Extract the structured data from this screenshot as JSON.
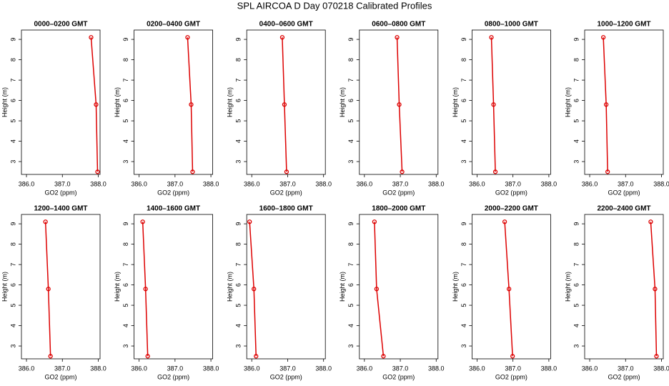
{
  "title": "SPL AIRCOA D  Day 070218  Calibrated Profiles",
  "chart_data": [
    {
      "type": "line",
      "title": "0000–0200 GMT",
      "xlabel": "GO2 (ppm)",
      "ylabel": "Height (m)",
      "x": [
        387.8,
        387.94,
        387.98
      ],
      "values": [
        9.1,
        5.8,
        2.5
      ],
      "color": "#dd0000",
      "xlim": [
        385.86,
        388.05
      ],
      "ylim": [
        2.37,
        9.46
      ],
      "xticks": [
        {
          "value": 386,
          "label": "386.0"
        },
        {
          "value": 387,
          "label": "387.0"
        },
        {
          "value": 388,
          "label": "388.0"
        }
      ],
      "yticks": [
        3,
        4,
        5,
        6,
        7,
        8,
        9
      ]
    },
    {
      "type": "line",
      "title": "0200–0400 GMT",
      "xlabel": "GO2 (ppm)",
      "ylabel": "Height (m)",
      "x": [
        387.35,
        387.45,
        387.49
      ],
      "values": [
        9.1,
        5.8,
        2.5
      ],
      "color": "#dd0000",
      "xlim": [
        385.86,
        388.05
      ],
      "ylim": [
        2.37,
        9.46
      ],
      "xticks": [
        {
          "value": 386,
          "label": "386.0"
        },
        {
          "value": 387,
          "label": "387.0"
        },
        {
          "value": 388,
          "label": "388.0"
        }
      ],
      "yticks": [
        3,
        4,
        5,
        6,
        7,
        8,
        9
      ]
    },
    {
      "type": "line",
      "title": "0400–0600 GMT",
      "xlabel": "GO2 (ppm)",
      "ylabel": "Height (m)",
      "x": [
        386.85,
        386.91,
        386.97
      ],
      "values": [
        9.1,
        5.8,
        2.5
      ],
      "color": "#dd0000",
      "xlim": [
        385.86,
        388.05
      ],
      "ylim": [
        2.37,
        9.46
      ],
      "xticks": [
        {
          "value": 386,
          "label": "386.0"
        },
        {
          "value": 387,
          "label": "387.0"
        },
        {
          "value": 388,
          "label": "388.0"
        }
      ],
      "yticks": [
        3,
        4,
        5,
        6,
        7,
        8,
        9
      ]
    },
    {
      "type": "line",
      "title": "0600–0800 GMT",
      "xlabel": "GO2 (ppm)",
      "ylabel": "Height (m)",
      "x": [
        386.91,
        386.97,
        387.05
      ],
      "values": [
        9.1,
        5.8,
        2.5
      ],
      "color": "#dd0000",
      "xlim": [
        385.86,
        388.05
      ],
      "ylim": [
        2.37,
        9.46
      ],
      "xticks": [
        {
          "value": 386,
          "label": "386.0"
        },
        {
          "value": 387,
          "label": "387.0"
        },
        {
          "value": 388,
          "label": "388.0"
        }
      ],
      "yticks": [
        3,
        4,
        5,
        6,
        7,
        8,
        9
      ]
    },
    {
      "type": "line",
      "title": "0800–1000 GMT",
      "xlabel": "GO2 (ppm)",
      "ylabel": "Height (m)",
      "x": [
        386.4,
        386.46,
        386.51
      ],
      "values": [
        9.1,
        5.8,
        2.5
      ],
      "color": "#dd0000",
      "xlim": [
        385.86,
        388.05
      ],
      "ylim": [
        2.37,
        9.46
      ],
      "xticks": [
        {
          "value": 386,
          "label": "386.0"
        },
        {
          "value": 387,
          "label": "387.0"
        },
        {
          "value": 388,
          "label": "388.0"
        }
      ],
      "yticks": [
        3,
        4,
        5,
        6,
        7,
        8,
        9
      ]
    },
    {
      "type": "line",
      "title": "1000–1200 GMT",
      "xlabel": "GO2 (ppm)",
      "ylabel": "Height (m)",
      "x": [
        386.38,
        386.46,
        386.5
      ],
      "values": [
        9.1,
        5.8,
        2.5
      ],
      "color": "#dd0000",
      "xlim": [
        385.86,
        388.05
      ],
      "ylim": [
        2.37,
        9.46
      ],
      "xticks": [
        {
          "value": 386,
          "label": "386.0"
        },
        {
          "value": 387,
          "label": "387.0"
        },
        {
          "value": 388,
          "label": "388.0"
        }
      ],
      "yticks": [
        3,
        4,
        5,
        6,
        7,
        8,
        9
      ]
    },
    {
      "type": "line",
      "title": "1200–1400 GMT",
      "xlabel": "GO2 (ppm)",
      "ylabel": "Height (m)",
      "x": [
        386.53,
        386.61,
        386.67
      ],
      "values": [
        9.1,
        5.8,
        2.5
      ],
      "color": "#dd0000",
      "xlim": [
        385.86,
        388.05
      ],
      "ylim": [
        2.37,
        9.46
      ],
      "xticks": [
        {
          "value": 386,
          "label": "386.0"
        },
        {
          "value": 387,
          "label": "387.0"
        },
        {
          "value": 388,
          "label": "388.0"
        }
      ],
      "yticks": [
        3,
        4,
        5,
        6,
        7,
        8,
        9
      ]
    },
    {
      "type": "line",
      "title": "1400–1600 GMT",
      "xlabel": "GO2 (ppm)",
      "ylabel": "Height (m)",
      "x": [
        386.1,
        386.18,
        386.24
      ],
      "values": [
        9.1,
        5.8,
        2.5
      ],
      "color": "#dd0000",
      "xlim": [
        385.86,
        388.05
      ],
      "ylim": [
        2.37,
        9.46
      ],
      "xticks": [
        {
          "value": 386,
          "label": "386.0"
        },
        {
          "value": 387,
          "label": "387.0"
        },
        {
          "value": 388,
          "label": "388.0"
        }
      ],
      "yticks": [
        3,
        4,
        5,
        6,
        7,
        8,
        9
      ]
    },
    {
      "type": "line",
      "title": "1600–1800 GMT",
      "xlabel": "GO2 (ppm)",
      "ylabel": "Height (m)",
      "x": [
        385.94,
        386.06,
        386.12
      ],
      "values": [
        9.1,
        5.8,
        2.5
      ],
      "color": "#dd0000",
      "xlim": [
        385.86,
        388.05
      ],
      "ylim": [
        2.37,
        9.46
      ],
      "xticks": [
        {
          "value": 386,
          "label": "386.0"
        },
        {
          "value": 387,
          "label": "387.0"
        },
        {
          "value": 388,
          "label": "388.0"
        }
      ],
      "yticks": [
        3,
        4,
        5,
        6,
        7,
        8,
        9
      ]
    },
    {
      "type": "line",
      "title": "1800–2000 GMT",
      "xlabel": "GO2 (ppm)",
      "ylabel": "Height (m)",
      "x": [
        386.28,
        386.34,
        386.53
      ],
      "values": [
        9.1,
        5.8,
        2.5
      ],
      "color": "#dd0000",
      "xlim": [
        385.86,
        388.05
      ],
      "ylim": [
        2.37,
        9.46
      ],
      "xticks": [
        {
          "value": 386,
          "label": "386.0"
        },
        {
          "value": 387,
          "label": "387.0"
        },
        {
          "value": 388,
          "label": "388.0"
        }
      ],
      "yticks": [
        3,
        4,
        5,
        6,
        7,
        8,
        9
      ]
    },
    {
      "type": "line",
      "title": "2000–2200 GMT",
      "xlabel": "GO2 (ppm)",
      "ylabel": "Height (m)",
      "x": [
        386.77,
        386.89,
        386.99
      ],
      "values": [
        9.1,
        5.8,
        2.5
      ],
      "color": "#dd0000",
      "xlim": [
        385.86,
        388.05
      ],
      "ylim": [
        2.37,
        9.46
      ],
      "xticks": [
        {
          "value": 386,
          "label": "386.0"
        },
        {
          "value": 387,
          "label": "387.0"
        },
        {
          "value": 388,
          "label": "388.0"
        }
      ],
      "yticks": [
        3,
        4,
        5,
        6,
        7,
        8,
        9
      ]
    },
    {
      "type": "line",
      "title": "2200–2400 GMT",
      "xlabel": "GO2 (ppm)",
      "ylabel": "Height (m)",
      "x": [
        387.7,
        387.82,
        387.86
      ],
      "values": [
        9.1,
        5.8,
        2.5
      ],
      "color": "#dd0000",
      "xlim": [
        385.86,
        388.05
      ],
      "ylim": [
        2.37,
        9.46
      ],
      "xticks": [
        {
          "value": 386,
          "label": "386.0"
        },
        {
          "value": 387,
          "label": "387.0"
        },
        {
          "value": 388,
          "label": "388.0"
        }
      ],
      "yticks": [
        3,
        4,
        5,
        6,
        7,
        8,
        9
      ]
    }
  ]
}
